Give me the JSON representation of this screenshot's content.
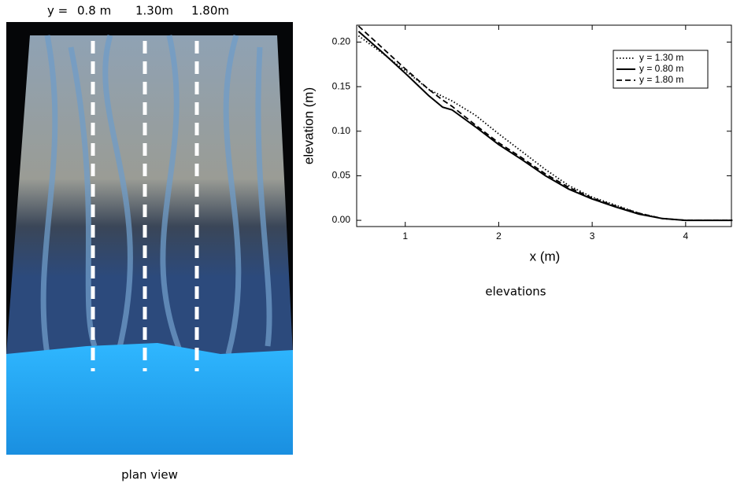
{
  "header": {
    "prefix": "y =",
    "labels": [
      "0.8 m",
      "1.30m",
      "1.80m"
    ]
  },
  "photo_caption": "plan view",
  "chart_caption": "elevations",
  "chart_data": {
    "type": "line",
    "xlabel": "x (m)",
    "ylabel": "elevation (m)",
    "x": [
      0.5,
      0.75,
      1.0,
      1.25,
      1.4,
      1.5,
      1.75,
      2.0,
      2.25,
      2.5,
      2.75,
      3.0,
      3.25,
      3.5,
      3.75,
      4.0,
      4.5
    ],
    "series": [
      {
        "name": "y = 1.30 m",
        "color": "#000000",
        "dash": "dotted",
        "values": [
          0.207,
          0.188,
          0.168,
          0.147,
          0.139,
          0.134,
          0.118,
          0.097,
          0.077,
          0.057,
          0.039,
          0.026,
          0.017,
          0.008,
          0.002,
          0.0,
          0.0
        ]
      },
      {
        "name": "y = 0.80 m",
        "color": "#000000",
        "dash": "solid",
        "values": [
          0.212,
          0.189,
          0.165,
          0.14,
          0.127,
          0.124,
          0.105,
          0.085,
          0.068,
          0.05,
          0.035,
          0.024,
          0.015,
          0.007,
          0.002,
          0.0,
          0.0
        ]
      },
      {
        "name": "y = 1.80 m",
        "color": "#000000",
        "dash": "dashed",
        "values": [
          0.218,
          0.194,
          0.17,
          0.147,
          0.135,
          0.128,
          0.107,
          0.087,
          0.07,
          0.052,
          0.037,
          0.025,
          0.016,
          0.008,
          0.002,
          0.0,
          0.0
        ]
      }
    ],
    "xlim": [
      0.48,
      4.49
    ],
    "ylim": [
      -0.007,
      0.219
    ],
    "xticks": [
      1,
      2,
      3,
      4
    ],
    "yticks": [
      {
        "value": 0,
        "label": "0.00"
      },
      {
        "value": 0.05,
        "label": "0.05"
      },
      {
        "value": 0.1,
        "label": "0.10"
      },
      {
        "value": 0.15,
        "label": "0.15"
      },
      {
        "value": 0.2,
        "label": "0.20"
      }
    ],
    "legend": "upper right",
    "grid": false
  }
}
